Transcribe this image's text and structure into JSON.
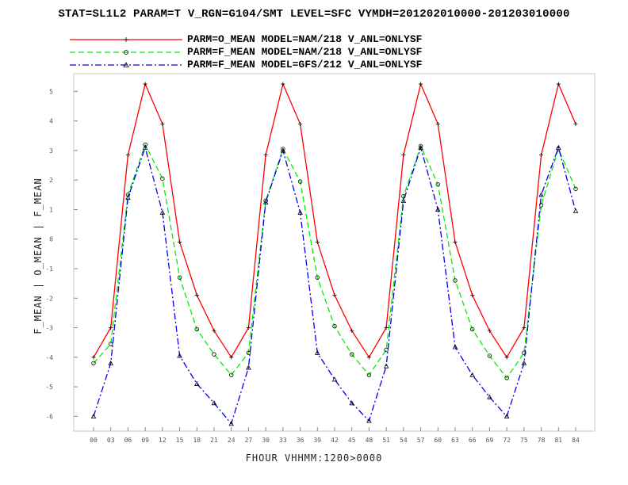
{
  "title": "STAT=SL1L2 PARAM=T V_RGN=G104/SMT LEVEL=SFC VYMDH=201202010000-201203010000",
  "colors": {
    "series1": "#ff0000",
    "series2": "#00ee00",
    "series3": "#0000ee"
  },
  "chart_data": {
    "type": "line",
    "xlabel": "FHOUR VHHMM:1200>0000",
    "ylabel": "F_MEAN | O_MEAN | F_MEAN",
    "categories": [
      "00",
      "03",
      "06",
      "09",
      "12",
      "15",
      "18",
      "21",
      "24",
      "27",
      "30",
      "33",
      "36",
      "39",
      "42",
      "45",
      "48",
      "51",
      "54",
      "57",
      "60",
      "63",
      "66",
      "69",
      "72",
      "75",
      "78",
      "81",
      "84"
    ],
    "ylim": [
      -6.5,
      5.6
    ],
    "yticks": [
      -6,
      -5,
      -4,
      -3,
      -2,
      -1,
      0,
      1,
      2,
      3,
      4,
      5
    ],
    "grid": false,
    "legend_position": "top",
    "series": [
      {
        "name": "PARM=O_MEAN MODEL=NAM/218 V_ANL=ONLYSF",
        "color": "#ff0000",
        "dash": "",
        "marker": "plus",
        "values": [
          -4.0,
          -3.0,
          2.85,
          5.25,
          3.9,
          -0.1,
          -1.9,
          -3.1,
          -4.0,
          -3.0,
          2.85,
          5.25,
          3.9,
          -0.1,
          -1.9,
          -3.1,
          -4.0,
          -3.0,
          2.85,
          5.25,
          3.9,
          -0.1,
          -1.9,
          -3.1,
          -4.0,
          -3.0,
          2.85,
          5.25,
          3.9
        ]
      },
      {
        "name": "PARM=F_MEAN MODEL=NAM/218 V_ANL=ONLYSF",
        "color": "#00ee00",
        "dash": "7,4",
        "marker": "circle",
        "values": [
          -4.2,
          -3.55,
          1.5,
          3.2,
          2.05,
          -1.3,
          -3.05,
          -3.9,
          -4.6,
          -3.85,
          1.3,
          3.05,
          1.95,
          -1.3,
          -2.95,
          -3.9,
          -4.6,
          -3.75,
          1.45,
          3.15,
          1.85,
          -1.4,
          -3.05,
          -3.95,
          -4.7,
          -3.85,
          1.15,
          3.05,
          1.7
        ]
      },
      {
        "name": "PARM=F_MEAN MODEL=GFS/212 V_ANL=ONLYSF",
        "color": "#0000ee",
        "dash": "8,3,2,3",
        "marker": "triangle",
        "values": [
          -6.0,
          -4.2,
          1.4,
          3.1,
          0.9,
          -3.95,
          -4.9,
          -5.55,
          -6.25,
          -4.35,
          1.25,
          3.0,
          0.9,
          -3.85,
          -4.75,
          -5.55,
          -6.15,
          -4.3,
          1.3,
          3.1,
          1.0,
          -3.65,
          -4.6,
          -5.35,
          -6.0,
          -4.2,
          1.5,
          3.1,
          0.95
        ]
      }
    ]
  }
}
